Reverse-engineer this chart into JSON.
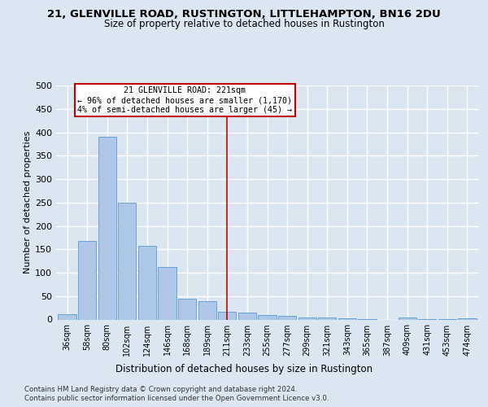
{
  "title_line1": "21, GLENVILLE ROAD, RUSTINGTON, LITTLEHAMPTON, BN16 2DU",
  "title_line2": "Size of property relative to detached houses in Rustington",
  "xlabel": "Distribution of detached houses by size in Rustington",
  "ylabel": "Number of detached properties",
  "footer_line1": "Contains HM Land Registry data © Crown copyright and database right 2024.",
  "footer_line2": "Contains public sector information licensed under the Open Government Licence v3.0.",
  "annotation_title": "21 GLENVILLE ROAD: 221sqm",
  "annotation_line1": "← 96% of detached houses are smaller (1,170)",
  "annotation_line2": "4% of semi-detached houses are larger (45) →",
  "highlight_bar_index": 8,
  "categories": [
    "36sqm",
    "58sqm",
    "80sqm",
    "102sqm",
    "124sqm",
    "146sqm",
    "168sqm",
    "189sqm",
    "211sqm",
    "233sqm",
    "255sqm",
    "277sqm",
    "299sqm",
    "321sqm",
    "343sqm",
    "365sqm",
    "387sqm",
    "409sqm",
    "431sqm",
    "453sqm",
    "474sqm"
  ],
  "values": [
    11,
    167,
    390,
    249,
    157,
    113,
    44,
    39,
    17,
    14,
    10,
    7,
    5,
    4,
    2,
    1,
    0,
    4,
    1,
    1,
    3
  ],
  "bar_color": "#aec6e8",
  "bar_edge_color": "#5b9bd5",
  "highlight_line_color": "#c00000",
  "bg_color": "#dce6f1",
  "grid_color": "#ffffff",
  "annotation_box_facecolor": "#ffffff",
  "annotation_border_color": "#c00000",
  "ylim": [
    0,
    500
  ],
  "yticks": [
    0,
    50,
    100,
    150,
    200,
    250,
    300,
    350,
    400,
    450,
    500
  ]
}
